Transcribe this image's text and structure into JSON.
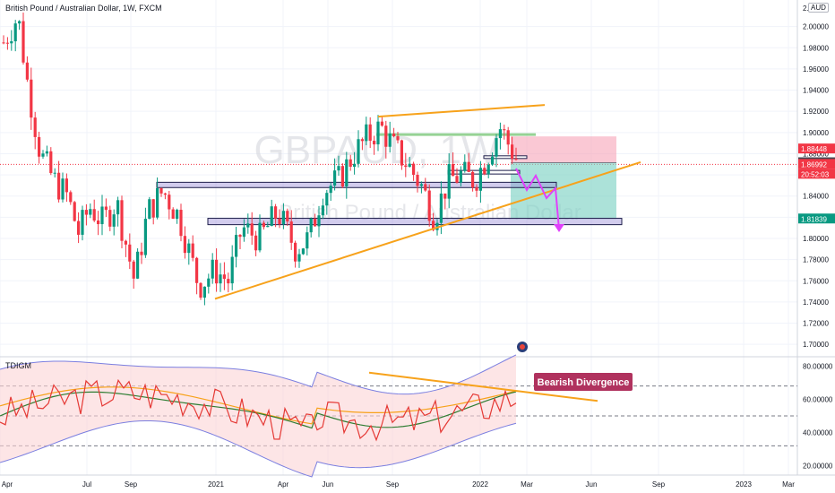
{
  "header": {
    "symbol_title": "British Pound / Australian Dollar, 1W, FXCM",
    "currency": "AUD"
  },
  "watermark": {
    "ticker": "GBPAUD, 1W",
    "name": "British Pound / Australian Dollar"
  },
  "indicator": {
    "name": "TDIGM",
    "annotation": "Bearish Divergence",
    "y_ticks": [
      "80.00000",
      "60.00000",
      "40.00000",
      "20.00000"
    ]
  },
  "price_axis": {
    "ticks": [
      "2.00000",
      "1.98000",
      "1.96000",
      "1.94000",
      "1.92000",
      "1.90000",
      "1.88000",
      "1.86000",
      "1.84000",
      "1.82000",
      "1.80000",
      "1.78000",
      "1.76000",
      "1.74000",
      "1.72000",
      "1.70000"
    ],
    "top_tick": "2.",
    "badges": [
      {
        "label": "1.88448",
        "color": "#f23645"
      },
      {
        "label": "1.87148",
        "color": "#434651"
      },
      {
        "label": "1.86992",
        "color": "#f23645"
      },
      {
        "label": "20:52:03",
        "color": "#f23645"
      },
      {
        "label": "1.81839",
        "color": "#089981"
      }
    ]
  },
  "time_axis": {
    "labels": [
      "Apr",
      "Jul",
      "Sep",
      "2021",
      "Apr",
      "Jun",
      "Sep",
      "2022",
      "Mar",
      "Jun",
      "Sep",
      "2023",
      "Mar"
    ]
  },
  "chart_data": {
    "type": "candlestick",
    "symbol": "GBPAUD",
    "interval": "1W",
    "current_price": 1.86992,
    "ylim": [
      1.69,
      2.02
    ],
    "levels": {
      "stop_loss": 1.88448,
      "entry": 1.87148,
      "take_profit": 1.81839
    },
    "zones": [
      {
        "low": 1.848,
        "high": 1.853
      },
      {
        "low": 1.813,
        "high": 1.819
      }
    ],
    "indicator_ylim": [
      15,
      85
    ],
    "indicator_levels": [
      68,
      50,
      32
    ],
    "colors": {
      "bull": "#089981",
      "bear": "#f23645",
      "trendline": "#f7a21b",
      "zone": "#9b8fd8",
      "arrow": "#e040fb"
    }
  }
}
